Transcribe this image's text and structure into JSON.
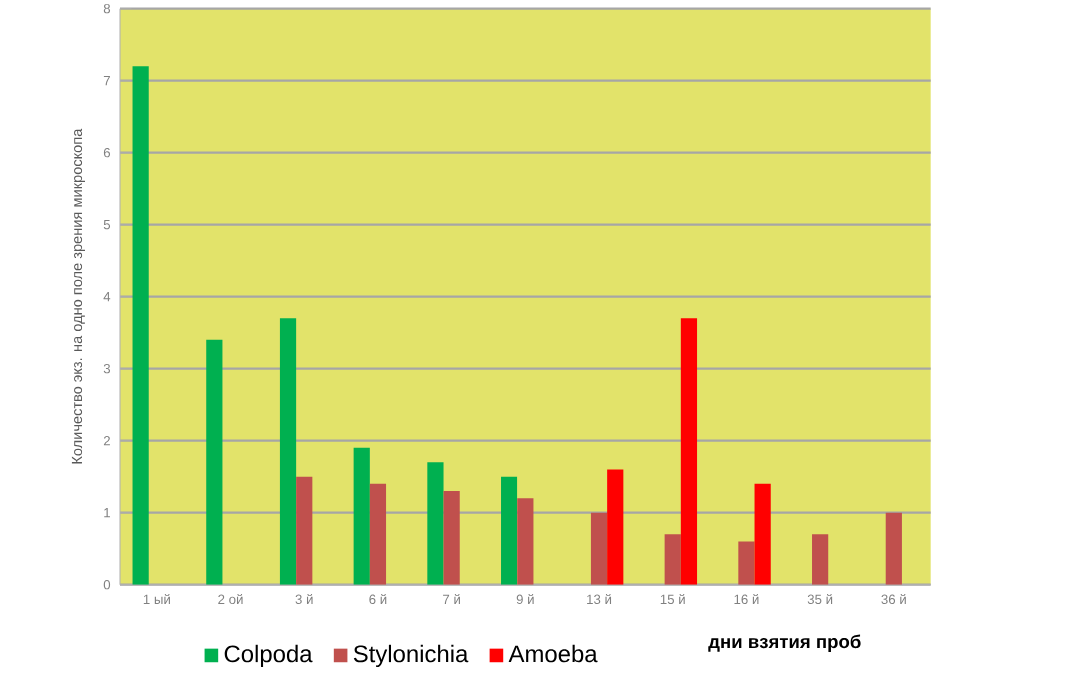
{
  "chart_data": {
    "type": "bar",
    "ylabel": "Количество экз. на одно поле зрения микроскопа",
    "xlabel": "дни взятия проб",
    "categories": [
      "1 ый",
      "2 ой",
      "3 й",
      "6 й",
      "7 й",
      "9 й",
      "13 й",
      "15 й",
      "16 й",
      "35 й",
      "36 й"
    ],
    "series": [
      {
        "name": "Colpoda",
        "color": "#00b050",
        "values": [
          7.2,
          3.4,
          3.7,
          1.9,
          1.7,
          1.5,
          null,
          null,
          null,
          null,
          null
        ]
      },
      {
        "name": "Stylonichia",
        "color": "#c0504d",
        "values": [
          null,
          null,
          1.5,
          1.4,
          1.3,
          1.2,
          1.0,
          0.7,
          0.6,
          0.7,
          1.0
        ]
      },
      {
        "name": "Amoeba",
        "color": "#ff0000",
        "values": [
          null,
          null,
          null,
          null,
          null,
          null,
          1.6,
          3.7,
          1.4,
          null,
          null
        ]
      }
    ],
    "ylim": [
      0,
      8
    ],
    "yticks": [
      0,
      1,
      2,
      3,
      4,
      5,
      6,
      7,
      8
    ],
    "grid": "y",
    "legend": "bottom"
  }
}
